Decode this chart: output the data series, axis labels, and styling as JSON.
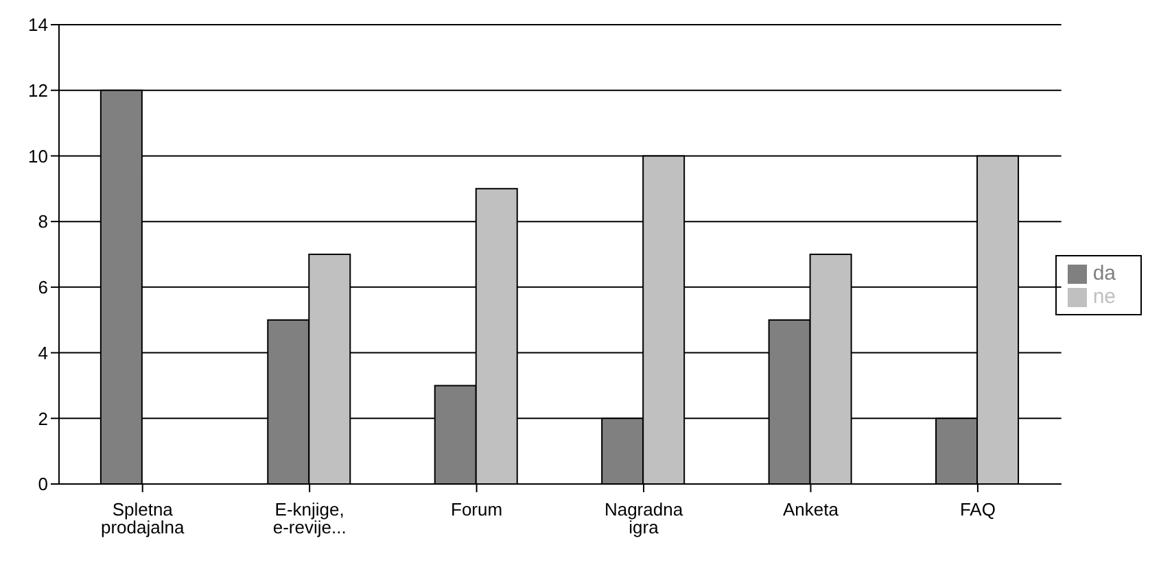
{
  "chart_data": {
    "type": "bar",
    "categories": [
      "Spletna prodajalna",
      "E-knjige, e-revije...",
      "Forum",
      "Nagradna igra",
      "Anketa",
      "FAQ"
    ],
    "series": [
      {
        "name": "da",
        "color": "#808080",
        "values": [
          12,
          5,
          3,
          2,
          5,
          2
        ]
      },
      {
        "name": "ne",
        "color": "#c0c0c0",
        "values": [
          0,
          7,
          9,
          10,
          7,
          10
        ]
      }
    ],
    "ylim": [
      0,
      14
    ],
    "yticks": [
      0,
      2,
      4,
      6,
      8,
      10,
      12,
      14
    ],
    "grid": "y",
    "legend": "right"
  }
}
